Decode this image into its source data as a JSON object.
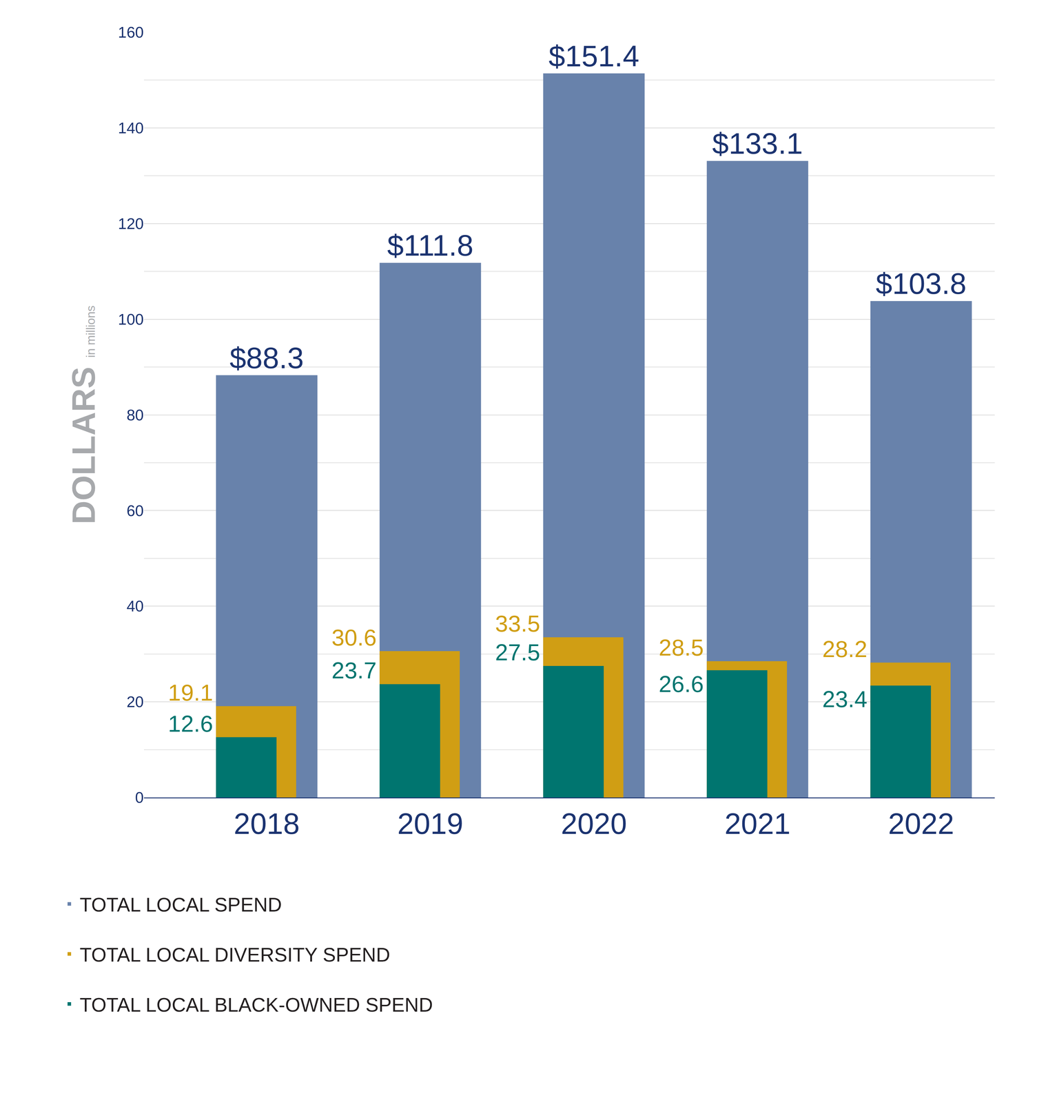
{
  "chart_data": {
    "type": "bar",
    "ylabel": "DOLLARS",
    "ylabel_unit": "in millions",
    "categories": [
      "2018",
      "2019",
      "2020",
      "2021",
      "2022"
    ],
    "series": [
      {
        "name": "TOTAL LOCAL SPEND",
        "color": "#6882AB",
        "values": [
          88.3,
          111.8,
          151.4,
          133.1,
          103.8
        ],
        "value_labels": [
          "$88.3",
          "$111.8",
          "$151.4",
          "$133.1",
          "$103.8"
        ]
      },
      {
        "name": "TOTAL LOCAL DIVERSITY SPEND",
        "color": "#D09E14",
        "values": [
          19.1,
          30.6,
          33.5,
          28.5,
          28.2
        ]
      },
      {
        "name": "TOTAL LOCAL BLACK-OWNED SPEND",
        "color": "#00756F",
        "values": [
          12.6,
          23.7,
          27.5,
          26.6,
          23.4
        ]
      }
    ],
    "ylim": [
      0,
      160
    ],
    "yticks": [
      0,
      20,
      40,
      60,
      80,
      100,
      120,
      140,
      160
    ],
    "grid": true,
    "legend": "bottom left",
    "data_labels": true
  }
}
